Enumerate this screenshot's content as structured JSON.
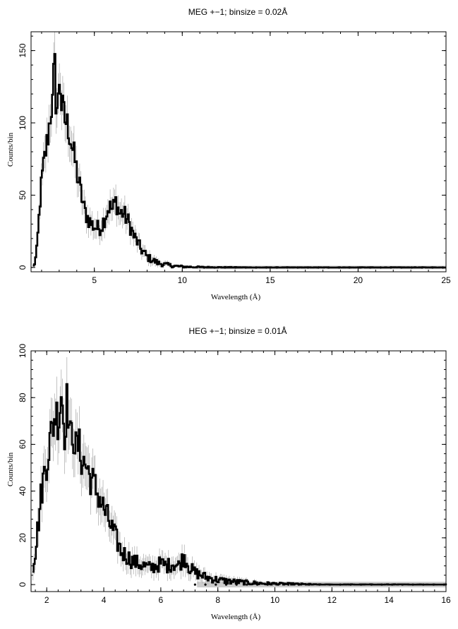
{
  "chart_data": [
    {
      "type": "line",
      "title": "MEG +−1; binsize = 0.02Å",
      "xlabel": "Wavelength (Å)",
      "ylabel": "Counts/bin",
      "xlim": [
        1.4,
        25
      ],
      "ylim": [
        -3,
        163
      ],
      "xticks": [
        5,
        10,
        15,
        20,
        25
      ],
      "yticks": [
        0,
        50,
        100,
        150
      ],
      "x_tick_labels": [
        "5",
        "10",
        "15",
        "20",
        "25"
      ],
      "y_tick_labels": [
        "0",
        "50",
        "100",
        "150"
      ],
      "grid": false,
      "colors": {
        "data": "#000000",
        "error": "#9a9a9a"
      },
      "series": [
        {
          "x": [
            1.5,
            1.6,
            1.7,
            1.8,
            1.9,
            2.0,
            2.1,
            2.2,
            2.3,
            2.4,
            2.5,
            2.6,
            2.7,
            2.8,
            2.9,
            3.0,
            3.1,
            3.2,
            3.3,
            3.4,
            3.5,
            3.6,
            3.7,
            3.8,
            3.9,
            4.0,
            4.2,
            4.4,
            4.6,
            4.8,
            5.0,
            5.2,
            5.4,
            5.6,
            5.8,
            6.0,
            6.2,
            6.4,
            6.6,
            6.8,
            7.0,
            7.2,
            7.4,
            7.6,
            7.8,
            8.0,
            8.3,
            8.6,
            9.0,
            9.5,
            10.0,
            11.0,
            12.0,
            14.0,
            17.0,
            20.0,
            23.0,
            25.0
          ],
          "y": [
            1,
            4,
            12,
            30,
            50,
            62,
            72,
            80,
            88,
            98,
            110,
            113,
            146,
            110,
            112,
            135,
            112,
            108,
            102,
            100,
            96,
            90,
            84,
            78,
            72,
            64,
            52,
            40,
            34,
            30,
            28,
            27,
            29,
            36,
            42,
            40,
            46,
            37,
            38,
            34,
            29,
            22,
            18,
            13,
            10,
            7,
            5,
            3,
            2,
            1,
            0.5,
            0.2,
            0.1,
            0,
            0,
            0,
            0,
            0
          ]
        }
      ]
    },
    {
      "type": "line",
      "title": "HEG +−1; binsize = 0.01Å",
      "xlabel": "Wavelength (Å)",
      "ylabel": "Counts/bin",
      "xlim": [
        1.45,
        16
      ],
      "ylim": [
        -3,
        100
      ],
      "xticks": [
        2,
        4,
        6,
        8,
        10,
        12,
        14,
        16
      ],
      "yticks": [
        0,
        20,
        40,
        60,
        80,
        100
      ],
      "x_tick_labels": [
        "2",
        "4",
        "6",
        "8",
        "10",
        "12",
        "14",
        "16"
      ],
      "y_tick_labels": [
        "0",
        "20",
        "40",
        "60",
        "80",
        "100"
      ],
      "grid": false,
      "colors": {
        "data": "#000000",
        "error": "#9a9a9a"
      },
      "series": [
        {
          "x": [
            1.5,
            1.6,
            1.7,
            1.8,
            1.9,
            2.0,
            2.1,
            2.2,
            2.3,
            2.4,
            2.5,
            2.6,
            2.7,
            2.8,
            2.9,
            3.0,
            3.1,
            3.2,
            3.3,
            3.4,
            3.5,
            3.6,
            3.8,
            4.0,
            4.2,
            4.4,
            4.6,
            4.8,
            5.0,
            5.2,
            5.4,
            5.6,
            5.8,
            6.0,
            6.2,
            6.4,
            6.6,
            6.8,
            7.0,
            7.2,
            7.4,
            7.6,
            7.8,
            8.0,
            8.3,
            8.6,
            9.0,
            9.5,
            10.0,
            10.5,
            11.0,
            11.5,
            12.0,
            14.0,
            16.0
          ],
          "y": [
            8,
            16,
            28,
            40,
            48,
            54,
            62,
            68,
            74,
            70,
            84,
            64,
            80,
            62,
            66,
            58,
            60,
            54,
            52,
            50,
            46,
            44,
            38,
            32,
            26,
            20,
            14,
            12,
            10,
            9,
            8,
            7,
            8,
            9,
            8,
            9,
            8,
            12,
            7,
            5,
            4,
            3,
            2.5,
            2,
            1.5,
            1.2,
            0.8,
            0.5,
            0.3,
            0.2,
            0.1,
            0,
            0,
            0,
            0
          ]
        }
      ]
    }
  ]
}
